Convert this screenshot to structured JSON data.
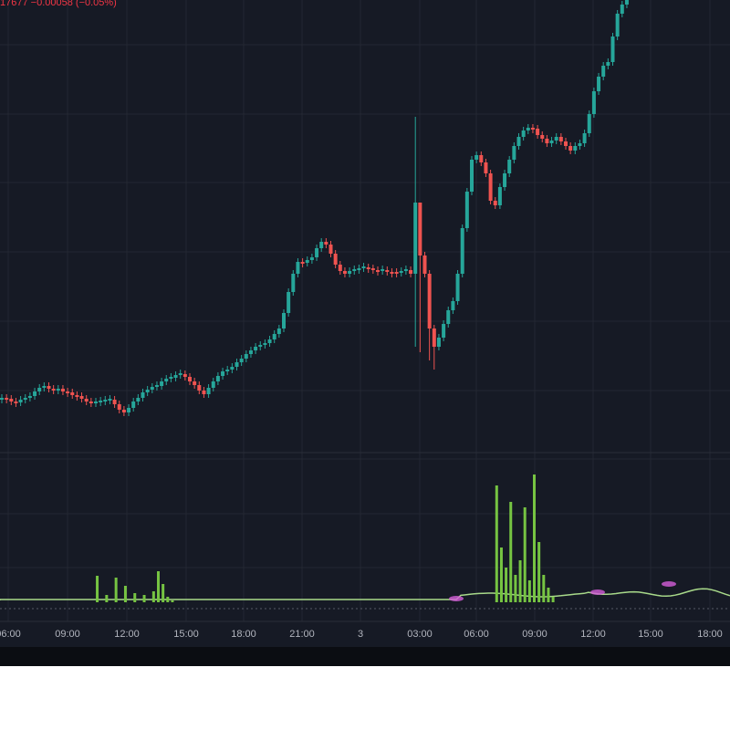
{
  "info": {
    "price_fragment": "17677",
    "change": "−0.00058",
    "change_pct": "(−0.05%)",
    "color": "#f23645"
  },
  "colors": {
    "background": "#161a25",
    "grid": "#232732",
    "up": "#26a69a",
    "down": "#ef5350",
    "histogram": "#76c442",
    "osc_line": "#a8d98a",
    "osc_fill_neg": "#d45ed9",
    "axis_text": "#b2b5be"
  },
  "chart_data": {
    "type": "candlestick",
    "x_axis_ticks": [
      "06:00",
      "09:00",
      "12:00",
      "15:00",
      "18:00",
      "21:00",
      "3",
      "03:00",
      "06:00",
      "09:00",
      "12:00",
      "15:00",
      "18:00"
    ],
    "candles_close_path": [
      436,
      437,
      440,
      441,
      438,
      436,
      434,
      429,
      425,
      423,
      426,
      428,
      426,
      429,
      430,
      433,
      434,
      437,
      440,
      442,
      441,
      440,
      439,
      438,
      443,
      449,
      452,
      447,
      440,
      436,
      430,
      427,
      424,
      423,
      418,
      415,
      414,
      411,
      410,
      413,
      418,
      422,
      428,
      432,
      425,
      418,
      412,
      407,
      405,
      402,
      397,
      393,
      388,
      384,
      380,
      378,
      376,
      372,
      366,
      360,
      343,
      320,
      300,
      287,
      288,
      285,
      282,
      272,
      265,
      268,
      278,
      290,
      297,
      300,
      297,
      296,
      294,
      293,
      294,
      296,
      297,
      296,
      298,
      298,
      299,
      297,
      296,
      300,
      222,
      280,
      300,
      360,
      380,
      370,
      355,
      340,
      330,
      300,
      250,
      210,
      175,
      170,
      178,
      190,
      220,
      225,
      205,
      190,
      175,
      160,
      150,
      143,
      140,
      141,
      148,
      152,
      157,
      154,
      150,
      155,
      160,
      165,
      160,
      157,
      146,
      125,
      100,
      84,
      72,
      68,
      40,
      15,
      5,
      0
    ],
    "histogram_values": [
      1,
      1,
      1,
      1,
      1,
      1,
      1,
      1,
      1,
      1,
      1,
      1,
      1,
      1,
      1,
      1,
      1,
      1,
      1,
      1,
      1,
      1,
      1,
      1,
      1,
      1,
      1,
      1,
      1,
      1,
      1,
      1,
      1,
      1,
      1,
      1,
      1,
      1,
      1,
      1,
      1,
      1,
      1,
      1,
      1,
      1,
      1,
      1,
      1,
      1,
      1,
      1,
      1,
      1,
      1,
      1,
      1,
      1,
      1,
      1,
      1,
      1,
      1,
      1,
      1,
      1,
      1,
      1,
      1,
      1,
      1,
      1,
      1,
      1,
      1,
      1,
      1,
      1,
      1,
      1,
      1,
      1,
      1,
      1,
      1,
      1,
      1,
      1,
      1,
      1,
      1,
      1,
      1,
      1,
      1,
      1,
      1,
      1,
      1,
      1,
      1,
      1,
      1,
      1,
      1,
      1,
      1,
      1,
      1,
      1,
      1,
      1,
      1,
      1,
      1,
      1,
      1,
      1,
      1,
      1,
      1,
      1,
      1,
      1,
      1,
      1,
      1,
      1,
      1,
      1,
      1,
      1,
      1,
      1
    ],
    "histogram_spikes": [
      {
        "bar": 27,
        "value": 29
      },
      {
        "bar": 29,
        "value": 8
      },
      {
        "bar": 31,
        "value": 27
      },
      {
        "bar": 33,
        "value": 18
      },
      {
        "bar": 35,
        "value": 10
      },
      {
        "bar": 37,
        "value": 8
      },
      {
        "bar": 39,
        "value": 12
      },
      {
        "bar": 40,
        "value": 34
      },
      {
        "bar": 41,
        "value": 20
      },
      {
        "bar": 42,
        "value": 6
      },
      {
        "bar": 43,
        "value": 2
      },
      {
        "bar": 112,
        "value": 128
      },
      {
        "bar": 113,
        "value": 60
      },
      {
        "bar": 114,
        "value": 38
      },
      {
        "bar": 115,
        "value": 110
      },
      {
        "bar": 116,
        "value": 30
      },
      {
        "bar": 117,
        "value": 46
      },
      {
        "bar": 118,
        "value": 104
      },
      {
        "bar": 119,
        "value": 24
      },
      {
        "bar": 120,
        "value": 140
      },
      {
        "bar": 121,
        "value": 66
      },
      {
        "bar": 122,
        "value": 30
      },
      {
        "bar": 123,
        "value": 16
      },
      {
        "bar": 124,
        "value": 6
      }
    ]
  }
}
